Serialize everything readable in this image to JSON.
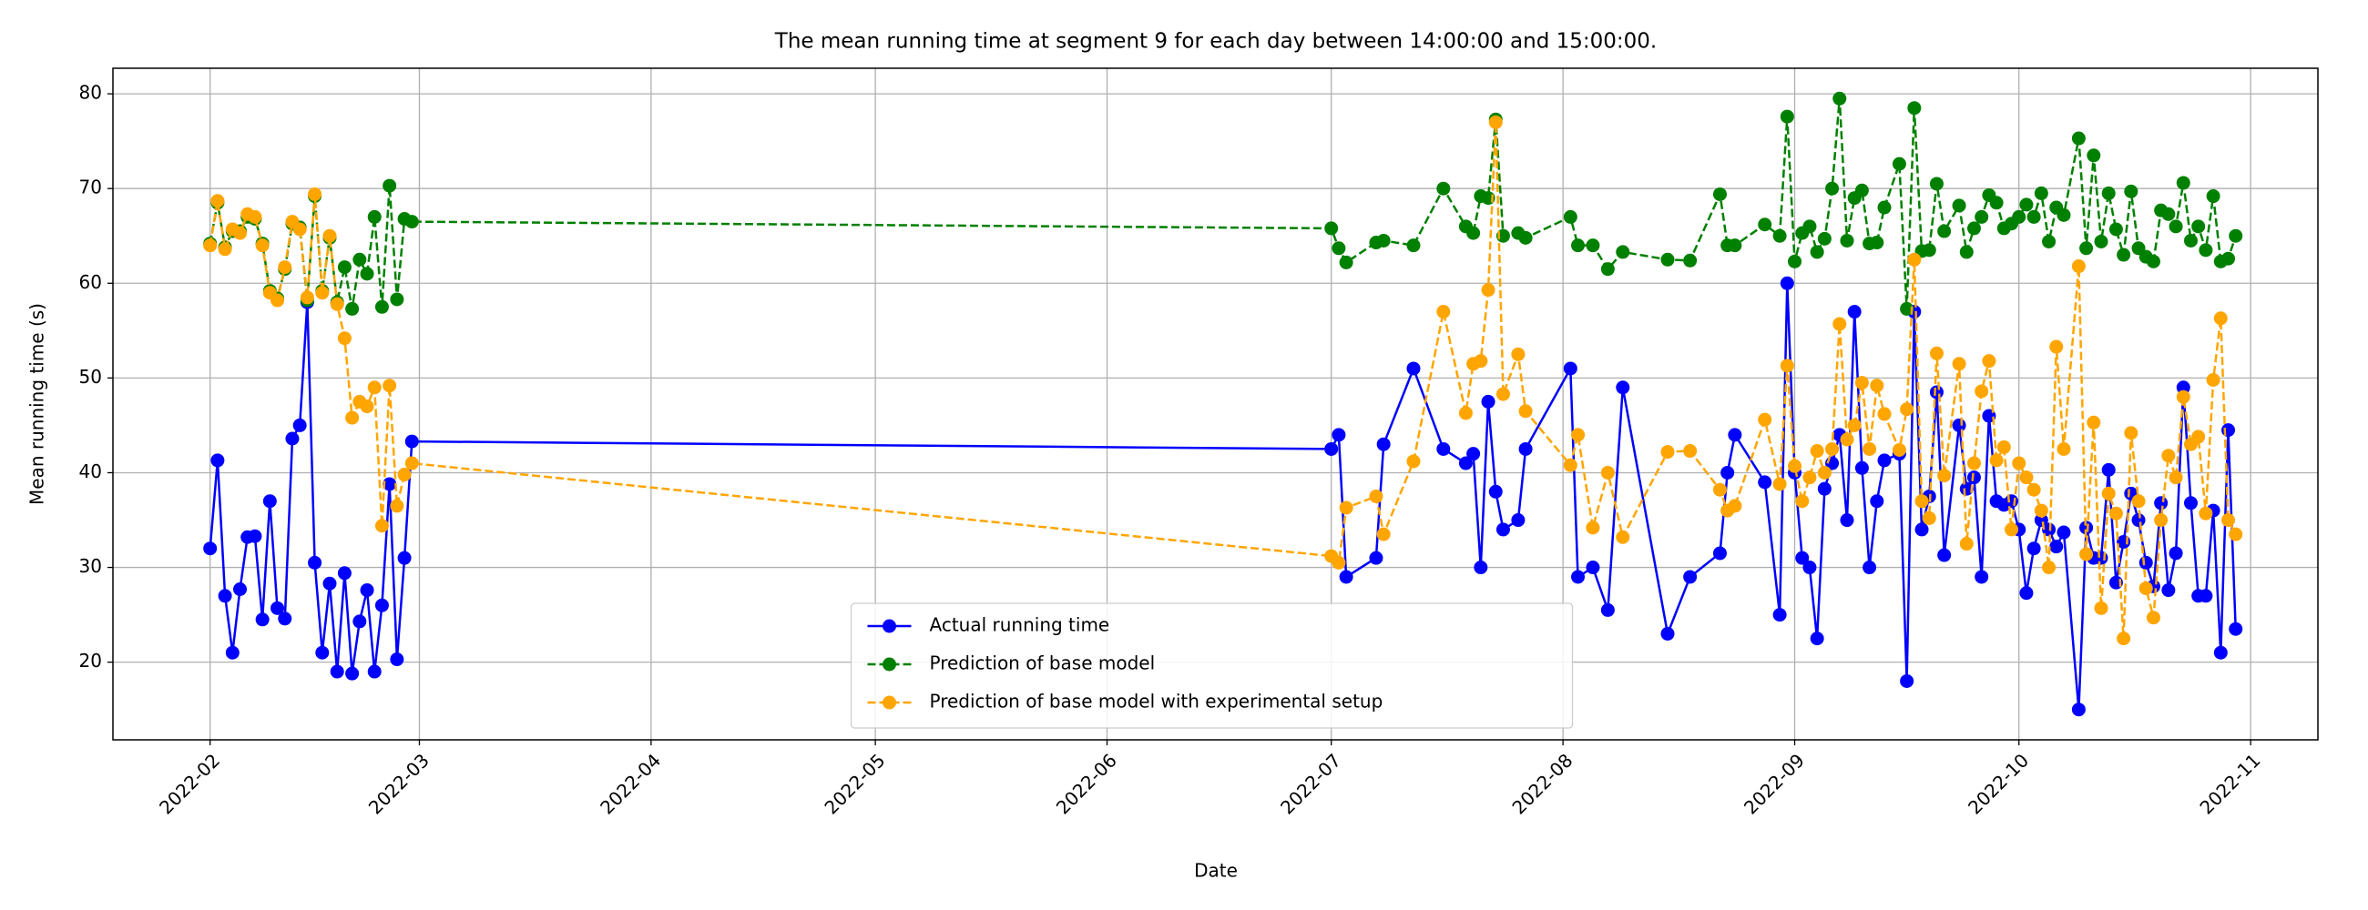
{
  "chart_data": {
    "type": "line",
    "title": "The mean running time at segment 9 for each day between 14:00:00 and 15:00:00.",
    "xlabel": "Date",
    "ylabel": "Mean running time (s)",
    "x": [
      "2022-02-01",
      "2022-02-02",
      "2022-02-03",
      "2022-02-04",
      "2022-02-05",
      "2022-02-06",
      "2022-02-07",
      "2022-02-08",
      "2022-02-09",
      "2022-02-10",
      "2022-02-11",
      "2022-02-12",
      "2022-02-13",
      "2022-02-14",
      "2022-02-15",
      "2022-02-16",
      "2022-02-17",
      "2022-02-18",
      "2022-02-19",
      "2022-02-20",
      "2022-02-21",
      "2022-02-22",
      "2022-02-23",
      "2022-02-24",
      "2022-02-25",
      "2022-02-26",
      "2022-02-27",
      "2022-02-28",
      "2022-07-01",
      "2022-07-02",
      "2022-07-03",
      "2022-07-07",
      "2022-07-08",
      "2022-07-12",
      "2022-07-16",
      "2022-07-19",
      "2022-07-20",
      "2022-07-21",
      "2022-07-22",
      "2022-07-23",
      "2022-07-24",
      "2022-07-26",
      "2022-07-27",
      "2022-08-02",
      "2022-08-03",
      "2022-08-05",
      "2022-08-07",
      "2022-08-09",
      "2022-08-15",
      "2022-08-18",
      "2022-08-22",
      "2022-08-23",
      "2022-08-24",
      "2022-08-28",
      "2022-08-30",
      "2022-08-31",
      "2022-09-01",
      "2022-09-02",
      "2022-09-03",
      "2022-09-04",
      "2022-09-05",
      "2022-09-06",
      "2022-09-07",
      "2022-09-08",
      "2022-09-09",
      "2022-09-10",
      "2022-09-11",
      "2022-09-12",
      "2022-09-13",
      "2022-09-15",
      "2022-09-16",
      "2022-09-17",
      "2022-09-18",
      "2022-09-19",
      "2022-09-20",
      "2022-09-21",
      "2022-09-23",
      "2022-09-24",
      "2022-09-25",
      "2022-09-26",
      "2022-09-27",
      "2022-09-28",
      "2022-09-29",
      "2022-09-30",
      "2022-10-01",
      "2022-10-02",
      "2022-10-03",
      "2022-10-04",
      "2022-10-05",
      "2022-10-06",
      "2022-10-07",
      "2022-10-09",
      "2022-10-10",
      "2022-10-11",
      "2022-10-12",
      "2022-10-13",
      "2022-10-14",
      "2022-10-15",
      "2022-10-16",
      "2022-10-17",
      "2022-10-18",
      "2022-10-19",
      "2022-10-20",
      "2022-10-21",
      "2022-10-22",
      "2022-10-23",
      "2022-10-24",
      "2022-10-25",
      "2022-10-26",
      "2022-10-27",
      "2022-10-28",
      "2022-10-29",
      "2022-10-30"
    ],
    "series": [
      {
        "name": "Actual running time",
        "color": "#0000ff",
        "linestyle": "solid",
        "values": [
          32,
          41.3,
          27,
          21,
          27.7,
          33.2,
          33.3,
          24.5,
          37,
          25.7,
          24.6,
          43.6,
          45,
          58,
          30.5,
          21,
          28.3,
          19,
          29.4,
          18.8,
          24.3,
          27.6,
          19,
          26,
          38.8,
          20.3,
          31,
          43.3,
          42.5,
          44,
          29,
          31,
          43,
          51,
          42.5,
          41,
          42,
          30,
          47.5,
          38,
          34,
          35,
          42.5,
          51,
          29,
          30,
          25.5,
          49,
          23,
          29,
          31.5,
          40,
          44,
          39,
          25,
          60,
          40,
          31,
          30,
          22.5,
          38.3,
          41,
          44,
          35,
          57,
          40.5,
          30,
          37,
          41.3,
          42,
          18,
          57,
          34,
          37.5,
          48.5,
          31.3,
          45,
          38.3,
          39.5,
          29,
          46,
          37,
          36.6,
          37,
          34,
          27.3,
          32,
          35,
          34,
          32.2,
          33.7,
          15,
          34.2,
          31,
          31,
          40.3,
          28.4,
          32.7,
          37.8,
          35,
          30.5,
          28,
          36.8,
          27.6,
          31.5,
          49,
          36.8,
          27,
          27,
          36,
          21,
          44.5,
          23.5
        ]
      },
      {
        "name": "Prediction of base model",
        "color": "#008000",
        "linestyle": "dashed",
        "values": [
          64.2,
          68.5,
          63.8,
          65.5,
          65.5,
          67,
          66.8,
          64.2,
          59.2,
          58.4,
          61.5,
          66.3,
          65.9,
          58.2,
          69.2,
          59.2,
          64.8,
          58,
          61.7,
          57.3,
          62.5,
          61,
          67,
          57.5,
          70.3,
          58.3,
          66.8,
          66.5,
          65.8,
          63.7,
          62.2,
          64.3,
          64.5,
          64,
          70,
          66,
          65.3,
          69.2,
          69,
          77.3,
          65,
          65.3,
          64.8,
          67,
          64,
          64,
          61.5,
          63.3,
          62.5,
          62.4,
          69.4,
          64,
          64,
          66.2,
          65,
          77.6,
          62.3,
          65.3,
          66,
          63.3,
          64.7,
          70,
          79.5,
          64.5,
          69,
          69.8,
          64.2,
          64.3,
          68,
          72.6,
          57.3,
          78.5,
          63.4,
          63.5,
          70.5,
          65.5,
          68.2,
          63.3,
          65.8,
          67,
          69.3,
          68.5,
          65.8,
          66.3,
          67,
          68.3,
          67,
          69.5,
          64.4,
          68,
          67.2,
          75.3,
          63.7,
          73.5,
          64.4,
          69.5,
          65.7,
          63,
          69.7,
          63.7,
          62.8,
          62.3,
          67.7,
          67.3,
          66,
          70.6,
          64.5,
          66,
          63.5,
          69.2,
          62.3,
          62.6,
          65
        ]
      },
      {
        "name": "Prediction of base model with experimental setup",
        "color": "#ffa500",
        "linestyle": "dashed",
        "values": [
          64,
          68.7,
          63.6,
          65.7,
          65.3,
          67.3,
          67,
          64,
          59,
          58.2,
          61.7,
          66.5,
          65.7,
          58.5,
          69.4,
          59,
          65,
          57.8,
          54.2,
          45.8,
          47.5,
          47,
          49,
          34.4,
          49.2,
          36.5,
          39.8,
          41,
          31.2,
          30.5,
          36.3,
          37.5,
          33.5,
          41.2,
          57,
          46.3,
          51.5,
          51.8,
          59.3,
          77,
          48.3,
          52.5,
          46.5,
          40.8,
          44,
          34.2,
          40,
          33.2,
          42.2,
          42.3,
          38.2,
          36,
          36.5,
          45.6,
          38.8,
          51.3,
          40.7,
          37,
          39.5,
          42.3,
          40,
          42.5,
          55.7,
          43.5,
          45,
          49.5,
          42.5,
          49.2,
          46.2,
          42.4,
          46.7,
          62.5,
          37,
          35.2,
          52.6,
          39.7,
          51.5,
          32.5,
          41,
          48.6,
          51.8,
          41.3,
          42.7,
          34,
          41,
          39.5,
          38.2,
          36,
          30,
          53.3,
          42.5,
          61.8,
          31.4,
          45.3,
          25.7,
          37.8,
          35.7,
          22.5,
          44.2,
          37,
          27.8,
          24.7,
          35,
          41.8,
          39.5,
          48,
          43,
          43.8,
          35.7,
          49.8,
          56.3,
          35,
          33.5
        ]
      }
    ],
    "xlim": [
      "2022-01-19",
      "2022-11-10"
    ],
    "xticks": [
      "2022-02",
      "2022-03",
      "2022-04",
      "2022-05",
      "2022-06",
      "2022-07",
      "2022-08",
      "2022-09",
      "2022-10",
      "2022-11"
    ],
    "ylim": [
      11.8,
      82.7
    ],
    "yticks": [
      20,
      30,
      40,
      50,
      60,
      70,
      80
    ],
    "grid": true,
    "legend": "lower center"
  }
}
